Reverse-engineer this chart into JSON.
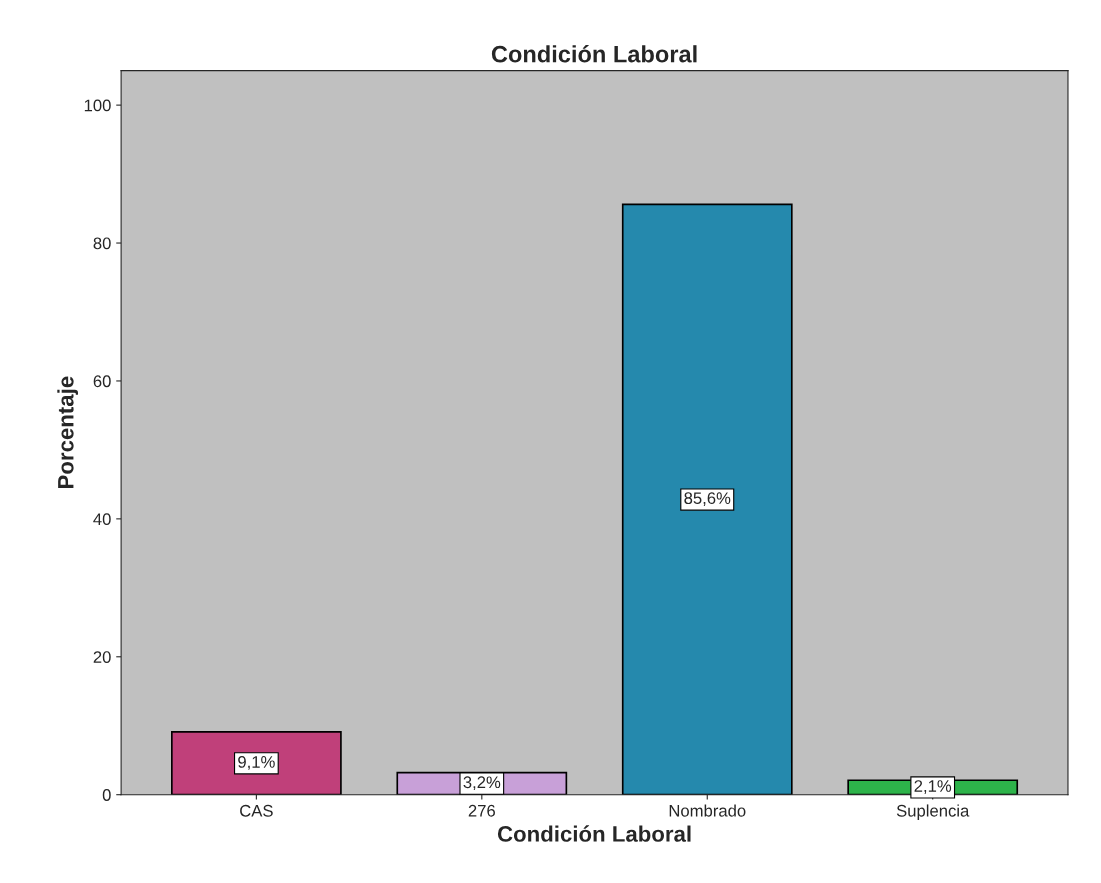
{
  "chart_data": {
    "type": "bar",
    "title": "Condición Laboral",
    "xlabel": "Condición Laboral",
    "ylabel": "Porcentaje",
    "categories": [
      "CAS",
      "276",
      "Nombrado",
      "Suplencia"
    ],
    "values": [
      9.1,
      3.2,
      85.6,
      2.1
    ],
    "colors": [
      "#c0407a",
      "#c8a0d8",
      "#2589ad",
      "#2db34a"
    ],
    "value_labels": [
      "9,1%",
      "3,2%",
      "85,6%",
      "2,1%"
    ],
    "ylim": [
      0,
      105
    ],
    "yticks": [
      0,
      20,
      40,
      60,
      80,
      100
    ],
    "grid": false
  }
}
